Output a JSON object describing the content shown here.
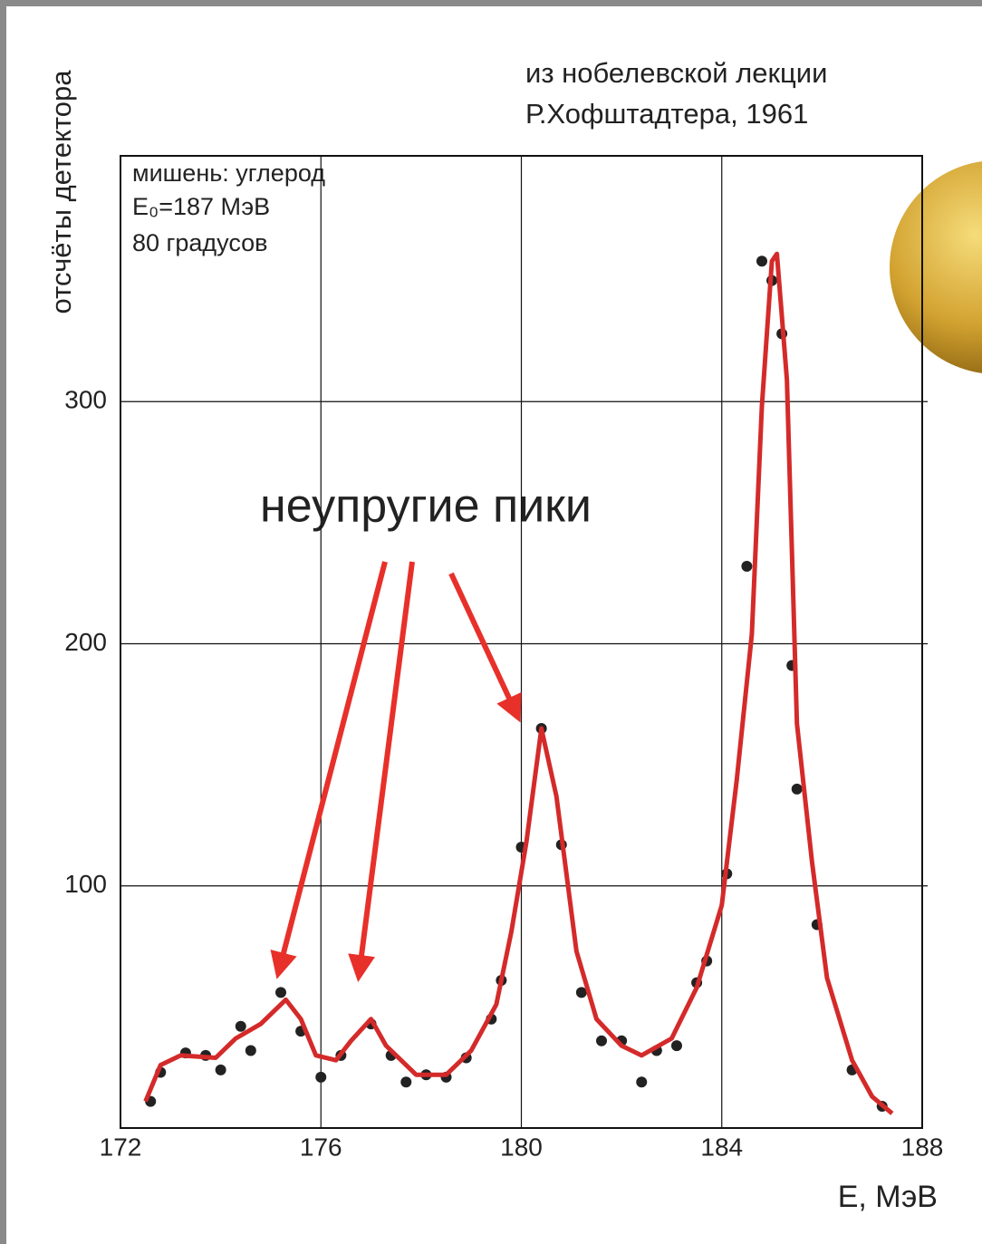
{
  "chart_data": {
    "type": "scatter",
    "title": "из нобелевской лекции",
    "subtitle": "Р.Хофштадтера, 1961",
    "x_label": "E, МэВ",
    "y_label": "отсчёты детектора",
    "annotations": [
      "мишень: углерод",
      "E₀=187 МэВ",
      "80 градусов"
    ],
    "callout": "неупругие пики",
    "xlim": [
      172,
      188
    ],
    "ylim": [
      0,
      400
    ],
    "xticks": [
      172,
      176,
      180,
      184,
      188
    ],
    "yticks": [
      100,
      200,
      300
    ],
    "grid": true,
    "series": [
      {
        "mode": "markers",
        "color": "#222222",
        "x": [
          172.6,
          172.8,
          173.3,
          173.7,
          174.0,
          174.4,
          174.6,
          175.2,
          175.6,
          176.0,
          176.4,
          177.0,
          177.4,
          177.7,
          178.1,
          178.5,
          178.9,
          179.4,
          179.6,
          180.0,
          180.4,
          180.8,
          181.2,
          181.6,
          182.0,
          182.4,
          182.7,
          183.1,
          183.5,
          183.7,
          184.1,
          184.5,
          184.8,
          185.0,
          185.2,
          185.4,
          185.5,
          185.9,
          186.6,
          187.2
        ],
        "y": [
          11,
          23,
          31,
          30,
          24,
          42,
          32,
          56,
          40,
          21,
          30,
          43,
          30,
          19,
          22,
          21,
          29,
          45,
          61,
          116,
          165,
          117,
          56,
          36,
          36,
          19,
          32,
          34,
          60,
          69,
          105,
          232,
          358,
          350,
          328,
          191,
          140,
          84,
          24,
          9
        ]
      },
      {
        "mode": "line",
        "color": "#d42a2a",
        "x": [
          172.5,
          172.8,
          173.2,
          173.9,
          174.3,
          174.8,
          175.3,
          175.6,
          175.9,
          176.3,
          176.6,
          177.0,
          177.3,
          177.9,
          178.5,
          179.0,
          179.5,
          179.8,
          180.1,
          180.4,
          180.7,
          181.1,
          181.5,
          182.0,
          182.4,
          183.0,
          183.5,
          184.0,
          184.3,
          184.6,
          184.8,
          185.0,
          185.1,
          185.3,
          185.5,
          185.8,
          186.1,
          186.6,
          187.0,
          187.4
        ],
        "y": [
          11,
          26,
          30,
          29,
          37,
          43,
          53,
          45,
          30,
          28,
          36,
          45,
          34,
          22,
          22,
          32,
          51,
          81,
          118,
          165,
          137,
          73,
          45,
          34,
          30,
          37,
          58,
          92,
          144,
          204,
          298,
          358,
          361,
          309,
          167,
          110,
          62,
          28,
          13,
          6
        ]
      }
    ]
  }
}
